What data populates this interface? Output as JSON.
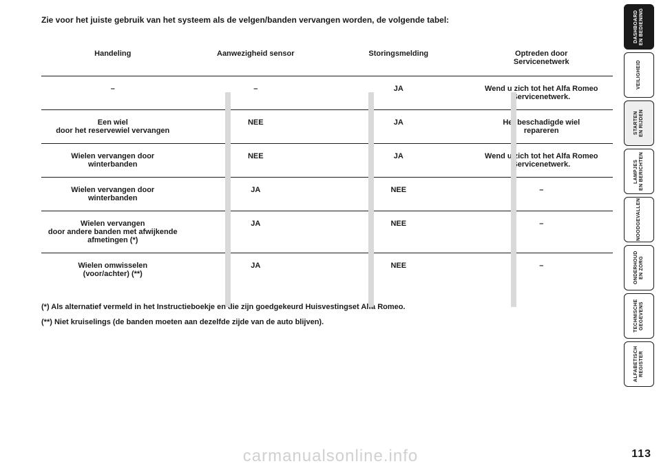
{
  "intro": "Zie voor het juiste gebruik van het systeem als de velgen/banden vervangen worden, de volgende tabel:",
  "table": {
    "headers": [
      "Handeling",
      "Aanwezigheid sensor",
      "Storingsmelding",
      "Optreden door\nServicenetwerk"
    ],
    "rows": [
      [
        "–",
        "–",
        "JA",
        "Wend u zich tot het Alfa Romeo\nServicenetwerk."
      ],
      [
        "Een wiel\ndoor het reservewiel vervangen",
        "NEE",
        "JA",
        "Het beschadigde wiel\nrepareren"
      ],
      [
        "Wielen vervangen door\nwinterbanden",
        "NEE",
        "JA",
        "Wend u zich tot het Alfa Romeo\nServicenetwerk."
      ],
      [
        "Wielen vervangen door\nwinterbanden",
        "JA",
        "NEE",
        "–"
      ],
      [
        "Wielen vervangen\ndoor andere banden met afwijkende\nafmetingen (*)",
        "JA",
        "NEE",
        "–"
      ],
      [
        "Wielen omwisselen\n(voor/achter) (**)",
        "JA",
        "NEE",
        "–"
      ]
    ]
  },
  "footnotes": [
    "(*) Als alternatief vermeld in het Instructieboekje en die zijn goedgekeurd Huisvestingset Alfa Romeo.",
    "(**) Niet kruiselings (de banden moeten aan dezelfde zijde van de auto blijven)."
  ],
  "tabs": [
    {
      "label": "DASHBOARD\nEN BEDIENING",
      "style": "dark"
    },
    {
      "label": "VEILIGHEID",
      "style": "plain"
    },
    {
      "label": "STARTEN\nEN RIJDEN",
      "style": "light"
    },
    {
      "label": "LAMPJES\nEN BERICHTEN",
      "style": "plain"
    },
    {
      "label": "NOODGEVALLEN",
      "style": "plain"
    },
    {
      "label": "ONDERHOUD\nEN ZORG",
      "style": "plain"
    },
    {
      "label": "TECHNISCHE\nGEGEVENS",
      "style": "plain"
    },
    {
      "label": "ALFABETISCH\nREGISTER",
      "style": "plain"
    }
  ],
  "page_number": "113",
  "watermark": "carmanualsonline.info",
  "colors": {
    "fg": "#1a1a1a",
    "bg": "#ffffff",
    "sep": "#d9d9d9",
    "tab_light": "#eeeeee"
  }
}
